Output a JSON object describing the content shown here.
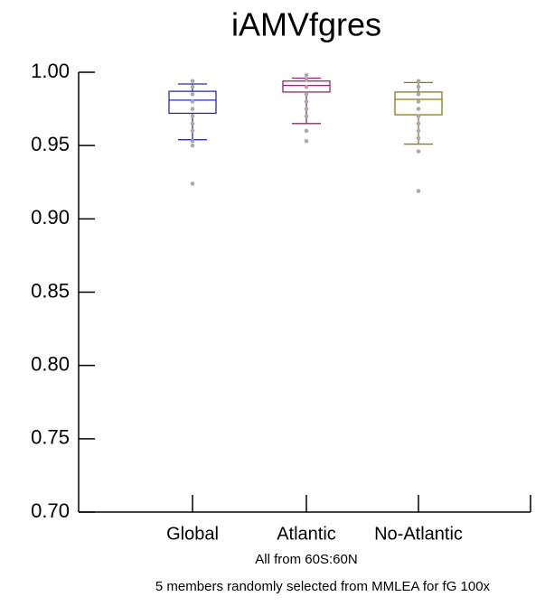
{
  "chart_data": {
    "type": "box",
    "title": "iAMVfgres",
    "subtitle": "All from 60S:60N",
    "footnote": "5 members randomly selected from MMLEA for fG 100x",
    "categories": [
      "Global",
      "Atlantic",
      "No-Atlantic"
    ],
    "boxes": [
      {
        "color": "#2a2aa8",
        "whislo": 0.954,
        "q1": 0.972,
        "med": 0.981,
        "q3": 0.987,
        "whishi": 0.992,
        "points": [
          0.924,
          0.95,
          0.953,
          0.96,
          0.965,
          0.97,
          0.975,
          0.98,
          0.985,
          0.99,
          0.994
        ]
      },
      {
        "color": "#9a2468",
        "whislo": 0.965,
        "q1": 0.9865,
        "med": 0.991,
        "q3": 0.994,
        "whishi": 0.996,
        "points": [
          0.953,
          0.96,
          0.97,
          0.975,
          0.98,
          0.985,
          0.99,
          0.995,
          0.998
        ]
      },
      {
        "color": "#8a7a18",
        "whislo": 0.951,
        "q1": 0.971,
        "med": 0.9815,
        "q3": 0.9865,
        "whishi": 0.993,
        "points": [
          0.919,
          0.946,
          0.955,
          0.96,
          0.965,
          0.97,
          0.975,
          0.98,
          0.985,
          0.99,
          0.994
        ]
      }
    ],
    "ylim": [
      0.7,
      1.0
    ],
    "yticks": [
      {
        "value": 0.7,
        "label": "0.70"
      },
      0.75,
      {
        "value": 0.8,
        "label": "0.80"
      },
      0.85,
      {
        "value": 0.9,
        "label": "0.90"
      },
      0.95,
      {
        "value": 1.0,
        "label": "1.00"
      }
    ]
  }
}
